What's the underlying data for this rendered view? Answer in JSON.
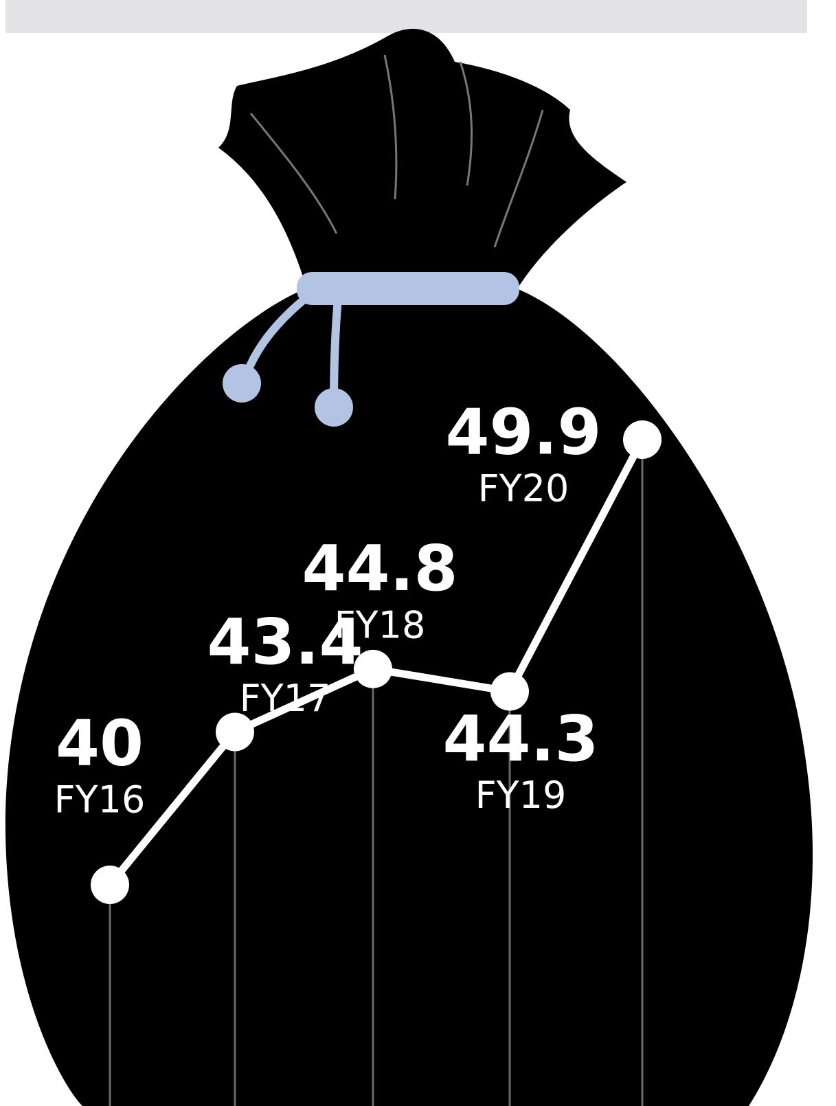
{
  "chart_data": {
    "type": "line",
    "categories": [
      "FY16",
      "FY17",
      "FY18",
      "FY19",
      "FY20"
    ],
    "values": [
      40,
      43.4,
      44.8,
      44.3,
      49.9
    ],
    "color": "#ffffff"
  }
}
